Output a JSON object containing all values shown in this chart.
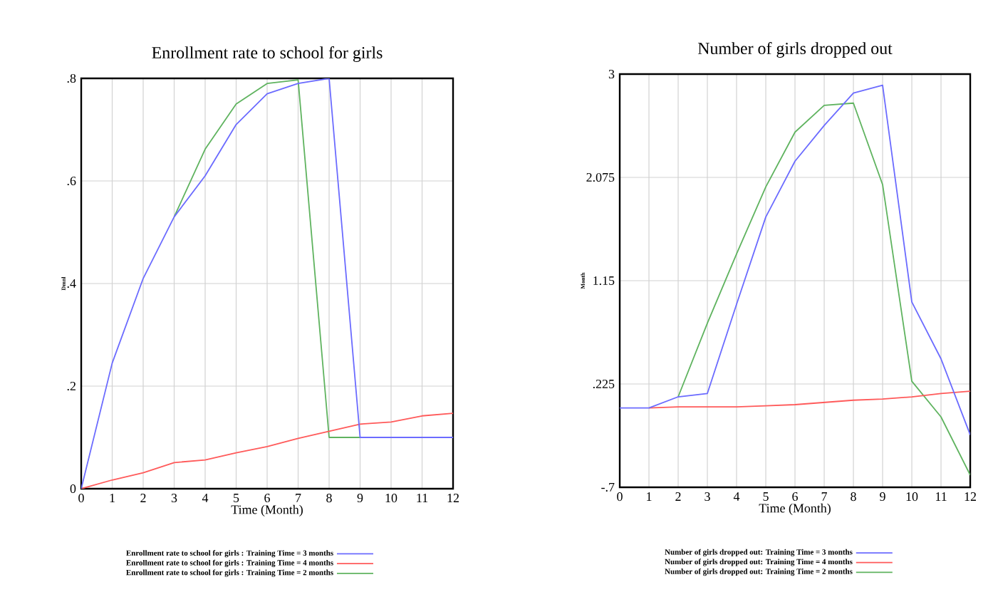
{
  "chart_data": [
    {
      "type": "line",
      "title": "Enrollment rate to school for girls",
      "xlabel": "Time (Month)",
      "ylabel": "Dmnl",
      "x": [
        0,
        1,
        2,
        3,
        4,
        5,
        6,
        7,
        8,
        9,
        10,
        11,
        12
      ],
      "xlim": [
        0,
        12
      ],
      "xticks": [
        0,
        1,
        2,
        3,
        4,
        5,
        6,
        7,
        8,
        9,
        10,
        11,
        12
      ],
      "ylim": [
        0,
        0.8
      ],
      "yticks": [
        {
          "value": 0,
          "label": "0"
        },
        {
          "value": 0.2,
          "label": ".2"
        },
        {
          "value": 0.4,
          "label": ".4"
        },
        {
          "value": 0.6,
          "label": ".6"
        },
        {
          "value": 0.8,
          "label": ".8"
        }
      ],
      "grid": true,
      "legend": "bottom",
      "marker": "none",
      "line_style": "solid",
      "series": [
        {
          "name": "Enrollment rate to school for girls : Training Time = 3 months",
          "color": "#6b6bff",
          "values": [
            0,
            0.245,
            0.41,
            0.53,
            0.61,
            0.71,
            0.77,
            0.79,
            0.8,
            0.1,
            0.1,
            0.1,
            0.1
          ]
        },
        {
          "name": "Enrollment rate to school for girls : Training Time = 4 months",
          "color": "#ff5a5a",
          "values": [
            0,
            0.017,
            0.031,
            0.051,
            0.056,
            0.07,
            0.082,
            0.098,
            0.112,
            0.126,
            0.13,
            0.142,
            0.147
          ]
        },
        {
          "name": "Enrollment rate to school for girls : Training Time = 2 months",
          "color": "#5fb35f",
          "values": [
            null,
            null,
            null,
            0.53,
            0.662,
            0.75,
            0.79,
            0.797,
            0.1,
            0.1,
            null,
            null,
            null
          ]
        }
      ]
    },
    {
      "type": "line",
      "title": "Number of girls dropped out",
      "xlabel": "Time (Month)",
      "ylabel": "Month",
      "x": [
        0,
        1,
        2,
        3,
        4,
        5,
        6,
        7,
        8,
        9,
        10,
        11,
        12
      ],
      "xlim": [
        0,
        12
      ],
      "xticks": [
        0,
        1,
        2,
        3,
        4,
        5,
        6,
        7,
        8,
        9,
        10,
        11,
        12
      ],
      "ylim": [
        -0.7,
        3
      ],
      "yticks": [
        {
          "value": -0.7,
          "label": "-.7"
        },
        {
          "value": 0.225,
          "label": ".225"
        },
        1.15,
        2.075,
        3
      ],
      "grid": true,
      "legend": "bottom",
      "marker": "none",
      "line_style": "solid",
      "series": [
        {
          "name": "Number of girls dropped out: Training Time = 3 months",
          "color": "#6b6bff",
          "values": [
            0.01,
            0.01,
            0.11,
            0.14,
            0.94,
            1.72,
            2.22,
            2.54,
            2.83,
            2.9,
            0.96,
            0.45,
            -0.23
          ]
        },
        {
          "name": "Number of girls dropped out: Training Time = 4 months",
          "color": "#ff5a5a",
          "values": [
            null,
            0.01,
            0.02,
            0.02,
            0.02,
            0.03,
            0.04,
            0.06,
            0.08,
            0.09,
            0.11,
            0.14,
            0.16
          ]
        },
        {
          "name": "Number of girls dropped out: Training Time = 2 months",
          "color": "#5fb35f",
          "values": [
            null,
            null,
            0.11,
            0.77,
            1.39,
            1.99,
            2.48,
            2.72,
            2.74,
            2.01,
            0.25,
            -0.07,
            -0.59
          ]
        }
      ]
    }
  ]
}
